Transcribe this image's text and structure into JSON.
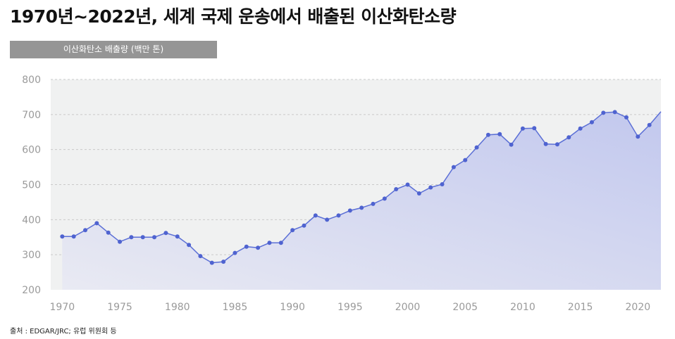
{
  "title": "1970년~2022년, 세계 국제 운송에서 배출된 이산화탄소량",
  "unit_label": "이산화탄소 배출량 (백만 톤)",
  "source": "출처 : EDGAR/JRC; 유럽 위원회 등",
  "colors": {
    "line": "#5b6fd6",
    "point": "#4f63d0",
    "area_top": "#c2c8ee",
    "area_bottom": "#e9eaf3",
    "plot_bg": "#f0f1f1",
    "grid": "#c9c9c9",
    "badge": "#959595"
  },
  "chart_data": {
    "type": "area",
    "title": "",
    "xlabel": "",
    "ylabel": "",
    "xlim": [
      1969,
      2022
    ],
    "ylim": [
      200,
      800
    ],
    "grid": true,
    "y_ticks": [
      "200",
      "300",
      "400",
      "500",
      "600",
      "700",
      "800"
    ],
    "x_ticks": [
      "1970",
      "1975",
      "1980",
      "1985",
      "1990",
      "1995",
      "2000",
      "2005",
      "2010",
      "2015",
      "2020"
    ],
    "x": [
      1970,
      1971,
      1972,
      1973,
      1974,
      1975,
      1976,
      1977,
      1978,
      1979,
      1980,
      1981,
      1982,
      1983,
      1984,
      1985,
      1986,
      1987,
      1988,
      1989,
      1990,
      1991,
      1992,
      1993,
      1994,
      1995,
      1996,
      1997,
      1998,
      1999,
      2000,
      2001,
      2002,
      2003,
      2004,
      2005,
      2006,
      2007,
      2008,
      2009,
      2010,
      2011,
      2012,
      2013,
      2014,
      2015,
      2016,
      2017,
      2018,
      2019,
      2020,
      2021,
      2022
    ],
    "values": [
      352,
      352,
      370,
      390,
      363,
      337,
      350,
      350,
      350,
      362,
      352,
      328,
      296,
      277,
      280,
      305,
      323,
      320,
      334,
      334,
      370,
      383,
      412,
      400,
      412,
      426,
      434,
      445,
      460,
      487,
      500,
      475,
      492,
      501,
      550,
      570,
      606,
      642,
      644,
      614,
      660,
      661,
      616,
      615,
      635,
      660,
      678,
      705,
      707,
      692,
      637,
      670,
      708
    ]
  }
}
